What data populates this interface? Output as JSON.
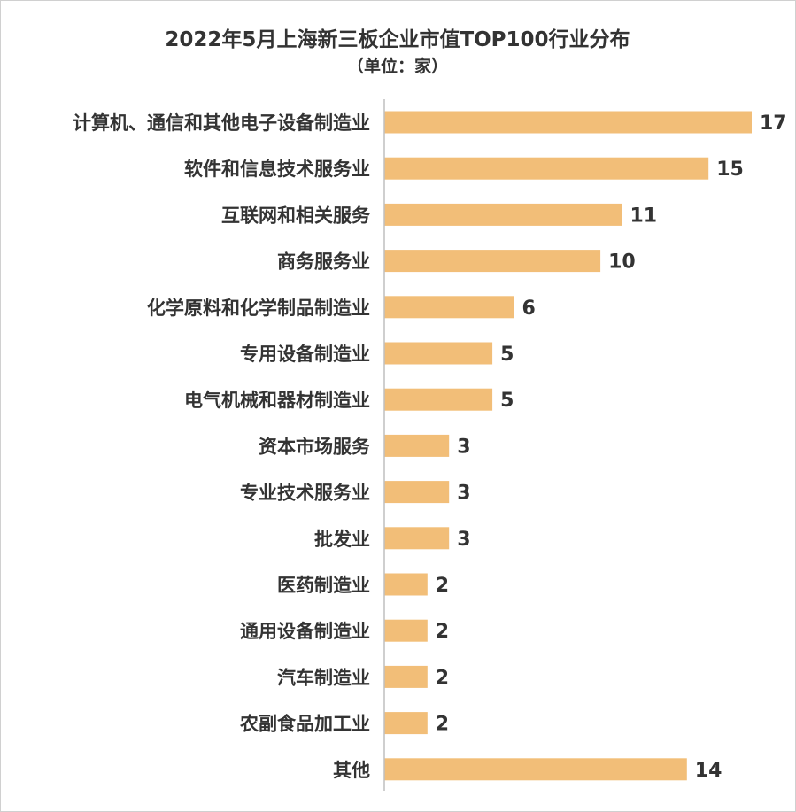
{
  "chart_data": {
    "type": "bar",
    "orientation": "horizontal",
    "title": "2022年5月上海新三板企业市值TOP100行业分布",
    "subtitle": "（单位：家）",
    "categories": [
      "计算机、通信和其他电子设备制造业",
      "软件和信息技术服务业",
      "互联网和相关服务",
      "商务服务业",
      "化学原料和化学制品制造业",
      "专用设备制造业",
      "电气机械和器材制造业",
      "资本市场服务",
      "专业技术服务业",
      "批发业",
      "医药制造业",
      "通用设备制造业",
      "汽车制造业",
      "农副食品加工业",
      "其他"
    ],
    "values": [
      17,
      15,
      11,
      10,
      6,
      5,
      5,
      3,
      3,
      3,
      2,
      2,
      2,
      2,
      14
    ],
    "xlim": [
      0,
      17
    ],
    "grid": false,
    "legend": "none",
    "data_labels": true,
    "bar_color": "#F2BE78",
    "text_color": "#333333",
    "axis_color": "#BFBFBF"
  }
}
